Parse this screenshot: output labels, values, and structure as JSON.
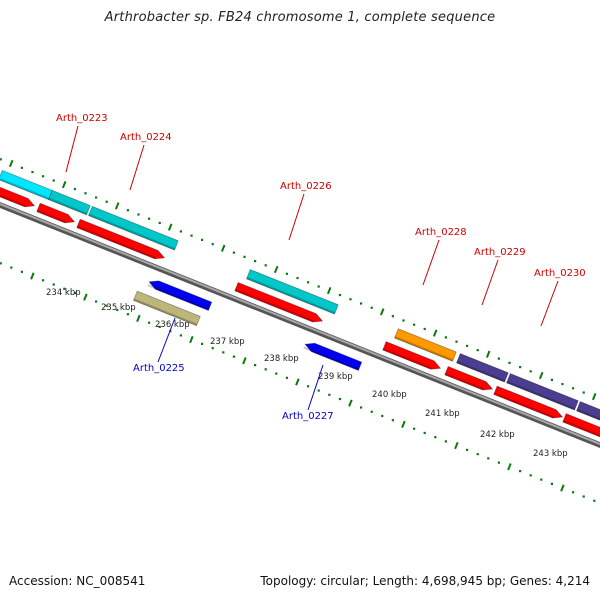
{
  "title": "Arthrobacter sp. FB24 chromosome 1, complete sequence",
  "footer": {
    "accession": "Accession: NC_008541",
    "summary": "Topology: circular; Length: 4,698,945 bp; Genes: 4,214"
  },
  "colors": {
    "cds": "#ff0000",
    "cyan": "#00c8c8",
    "bright_cyan": "#00e6ff",
    "orange": "#ff9900",
    "purple": "#4b3d8f",
    "blue": "#0000ee",
    "khaki": "#bdb67a",
    "tick": "#0a7a0a",
    "backbone": "#808080",
    "label_forward": "#cc0000",
    "label_reverse": "#0000cc"
  },
  "scale_labels": [
    "234 kbp",
    "235 kbp",
    "236 kbp",
    "237 kbp",
    "238 kbp",
    "239 kbp",
    "240 kbp",
    "241 kbp",
    "242 kbp",
    "243 kbp"
  ],
  "genes": [
    {
      "name": "Arth_0223",
      "strand": "forward"
    },
    {
      "name": "Arth_0224",
      "strand": "forward"
    },
    {
      "name": "Arth_0225",
      "strand": "reverse"
    },
    {
      "name": "Arth_0226",
      "strand": "forward"
    },
    {
      "name": "Arth_0227",
      "strand": "reverse"
    },
    {
      "name": "Arth_0228",
      "strand": "forward"
    },
    {
      "name": "Arth_0229",
      "strand": "forward"
    },
    {
      "name": "Arth_0230",
      "strand": "forward"
    }
  ]
}
